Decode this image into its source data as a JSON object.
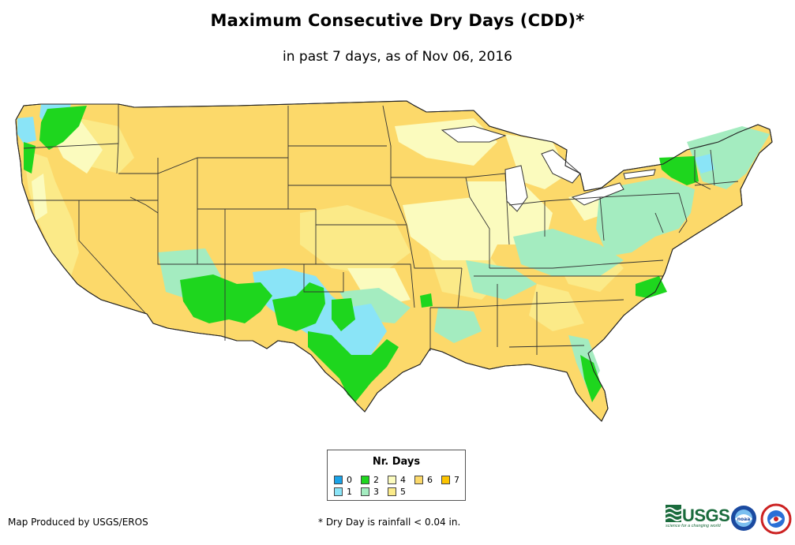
{
  "title": "Maximum Consecutive Dry Days (CDD)*",
  "subtitle": "in past 7 days, as of Nov 06, 2016",
  "legend": {
    "title": "Nr. Days",
    "items": [
      {
        "value": 0,
        "label": "0",
        "color": "#1aa3e8"
      },
      {
        "value": 1,
        "label": "1",
        "color": "#8ae4f7"
      },
      {
        "value": 2,
        "label": "2",
        "color": "#1ed61e"
      },
      {
        "value": 3,
        "label": "3",
        "color": "#a4ecc0"
      },
      {
        "value": 4,
        "label": "4",
        "color": "#fbfbbe"
      },
      {
        "value": 5,
        "label": "5",
        "color": "#fbeb8a"
      },
      {
        "value": 6,
        "label": "6",
        "color": "#fcd96a"
      },
      {
        "value": 7,
        "label": "7",
        "color": "#fcc400"
      }
    ]
  },
  "credit": "Map Produced by USGS/EROS",
  "footnote": "* Dry Day is rainfall < 0.04 in.",
  "logos": {
    "usgs_text": "USGS",
    "usgs_tagline": "science for a changing world",
    "noaa_text": "noaa",
    "nws_name": "national-weather-service-logo"
  }
}
